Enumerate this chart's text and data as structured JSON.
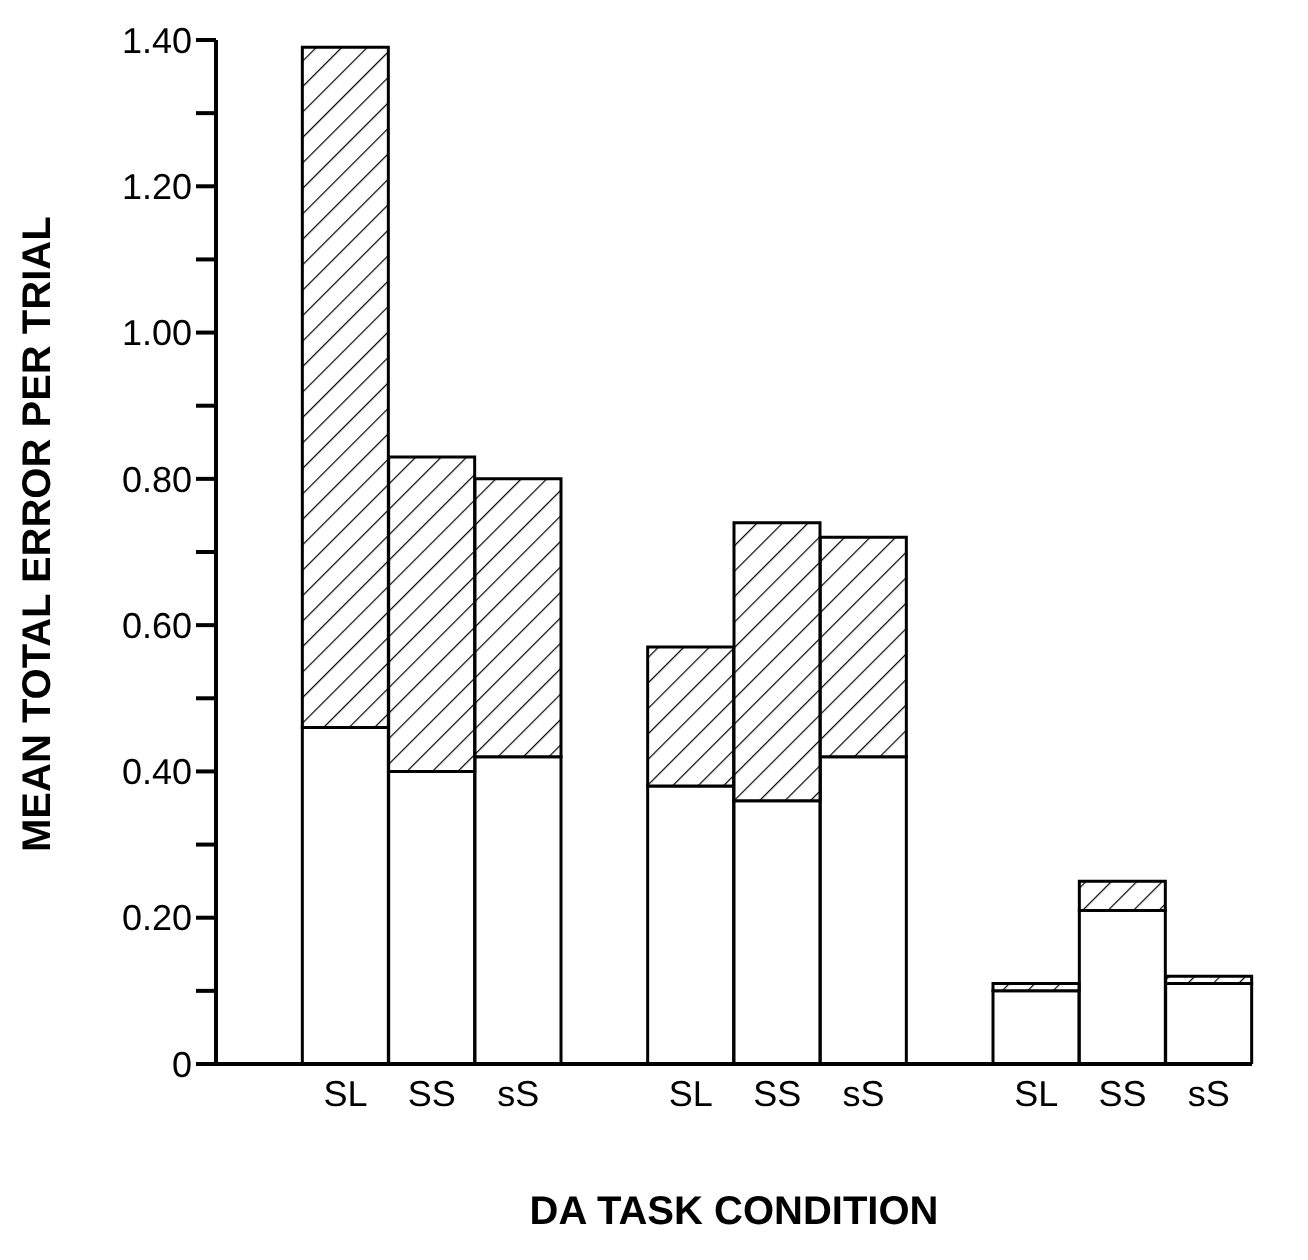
{
  "chart_data": {
    "type": "bar",
    "stacked": true,
    "xlabel": "DA TASK CONDITION",
    "ylabel": "MEAN TOTAL ERROR PER TRIAL",
    "categories": [
      null,
      "SL",
      "SS",
      "sS",
      null,
      "SL",
      "SS",
      "sS",
      null,
      "SL",
      "SS",
      "sS"
    ],
    "series": [
      {
        "color": "#ffffff",
        "values": [
          null,
          0.46,
          0.4,
          0.42,
          null,
          0.38,
          0.36,
          0.42,
          null,
          0.1,
          0.21,
          0.11
        ]
      },
      {
        "color": "#000000",
        "values": [
          null,
          0.93,
          0.43,
          0.38,
          null,
          0.19,
          0.38,
          0.3,
          null,
          0.01,
          0.04,
          0.01
        ]
      }
    ],
    "ylim": [
      0,
      1.4
    ],
    "yticks": [
      0,
      {
        "value": 0.1,
        "label": null
      },
      {
        "value": 0.2,
        "label": "0.20"
      },
      {
        "value": 0.3,
        "label": null
      },
      {
        "value": 0.4,
        "label": "0.40"
      },
      {
        "value": 0.5,
        "label": null
      },
      {
        "value": 0.6,
        "label": "0.60"
      },
      {
        "value": 0.7,
        "label": null
      },
      {
        "value": 0.8,
        "label": "0.80"
      },
      {
        "value": 0.9,
        "label": null
      },
      {
        "value": 1.0,
        "label": "1.00"
      },
      {
        "value": 1.1,
        "label": null
      },
      {
        "value": 1.2,
        "label": "1.20"
      },
      {
        "value": 1.3,
        "label": null
      },
      {
        "value": 1.4,
        "label": "1.40"
      }
    ],
    "grid": false,
    "legend": false
  }
}
